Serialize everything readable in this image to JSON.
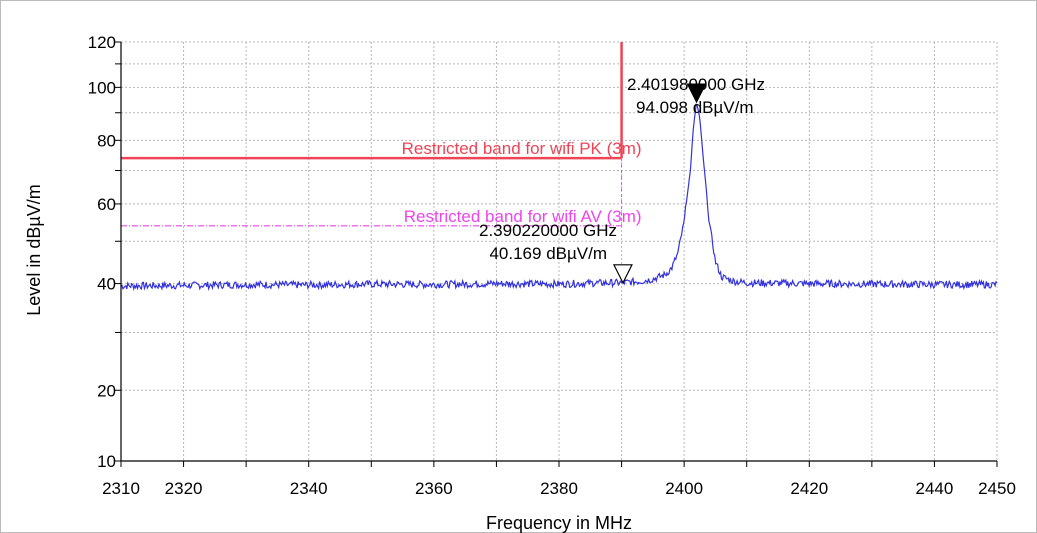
{
  "chart_data": {
    "type": "line",
    "xlabel": "Frequency in MHz",
    "ylabel": "Level in dBµV/m",
    "xlim": [
      2310,
      2450
    ],
    "ylim": [
      10,
      120
    ],
    "x_ticks": [
      "2310",
      "2320",
      "2340",
      "2360",
      "2380",
      "2400",
      "2420",
      "2440",
      "2450"
    ],
    "y_ticks": [
      "10",
      "20",
      "40",
      "60",
      "80",
      "100",
      "120"
    ],
    "grid": true,
    "series": [
      {
        "color": "#3333dd",
        "x": [
          2310,
          2320,
          2330,
          2340,
          2350,
          2360,
          2370,
          2380,
          2385,
          2390,
          2393,
          2395,
          2397,
          2398,
          2399,
          2400,
          2401,
          2401.5,
          2401.98,
          2402.5,
          2403,
          2404,
          2405,
          2406,
          2408,
          2410,
          2420,
          2430,
          2440,
          2450
        ],
        "y": [
          39.5,
          39.6,
          39.8,
          39.7,
          39.9,
          39.8,
          40.0,
          39.9,
          40.1,
          40.2,
          40.5,
          41.0,
          42.0,
          43.5,
          47.0,
          55.0,
          70.0,
          85.0,
          94.098,
          88.0,
          75.0,
          55.0,
          45.0,
          41.5,
          40.5,
          40.2,
          40.0,
          39.9,
          39.8,
          39.8
        ]
      }
    ],
    "limit_lines": [
      {
        "label": "Restricted band for  wifi  PK (3m)",
        "value": 74,
        "x_start": 2310,
        "x_end": 2390,
        "color": "#ee4455"
      },
      {
        "label": "Restricted band for  wifi  AV (3m)",
        "value": 54,
        "x_start": 2310,
        "x_end": 2390,
        "color": "#ee44ee"
      }
    ],
    "band_edge": {
      "x": 2390,
      "color": "#ee4455"
    },
    "markers": [
      {
        "freq": 2401.98,
        "level": 94.098,
        "freq_label": "2.401980000 GHz",
        "level_label": "94.098 dBµV/m",
        "filled": true
      },
      {
        "freq": 2390.22,
        "level": 40.169,
        "freq_label": "2.390220000 GHz",
        "level_label": "40.169 dBµV/m",
        "filled": false
      }
    ]
  }
}
